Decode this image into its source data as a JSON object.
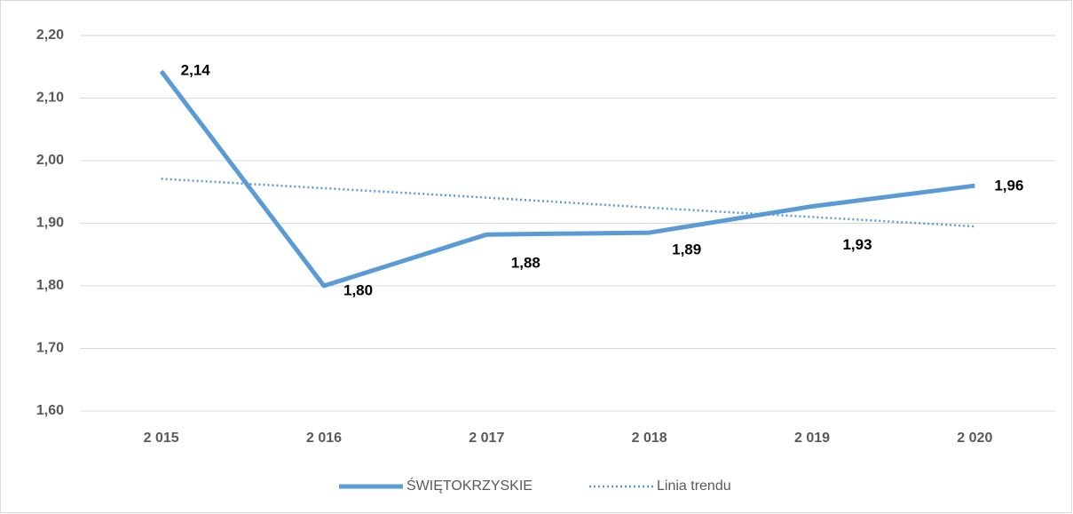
{
  "chart_data": {
    "type": "line",
    "categories": [
      "2 015",
      "2 016",
      "2 017",
      "2 018",
      "2 019",
      "2 020"
    ],
    "series": [
      {
        "name": "ŚWIĘTOKRZYSKIE",
        "color": "#5b9bd5",
        "values": [
          2.143,
          1.8,
          1.882,
          1.885,
          1.927,
          1.96
        ],
        "value_labels": [
          "2,14",
          "1,80",
          "1,88",
          "1,89",
          "1,93",
          "1,96"
        ]
      },
      {
        "name": "Linia trendu",
        "color": "#5b9bd5",
        "dashed": true,
        "values": [
          1.971,
          1.956,
          1.941,
          1.925,
          1.91,
          1.895
        ]
      }
    ],
    "ylim": [
      1.6,
      2.2
    ],
    "yticks": [
      {
        "value": 1.6,
        "label": "1,60"
      },
      {
        "value": 1.7,
        "label": "1,70"
      },
      {
        "value": 1.8,
        "label": "1,80"
      },
      {
        "value": 1.9,
        "label": "1,90"
      },
      {
        "value": 2.0,
        "label": "2,00"
      },
      {
        "value": 2.1,
        "label": "2,10"
      },
      {
        "value": 2.2,
        "label": "2,20"
      }
    ],
    "grid": true,
    "legend": "bottom"
  }
}
